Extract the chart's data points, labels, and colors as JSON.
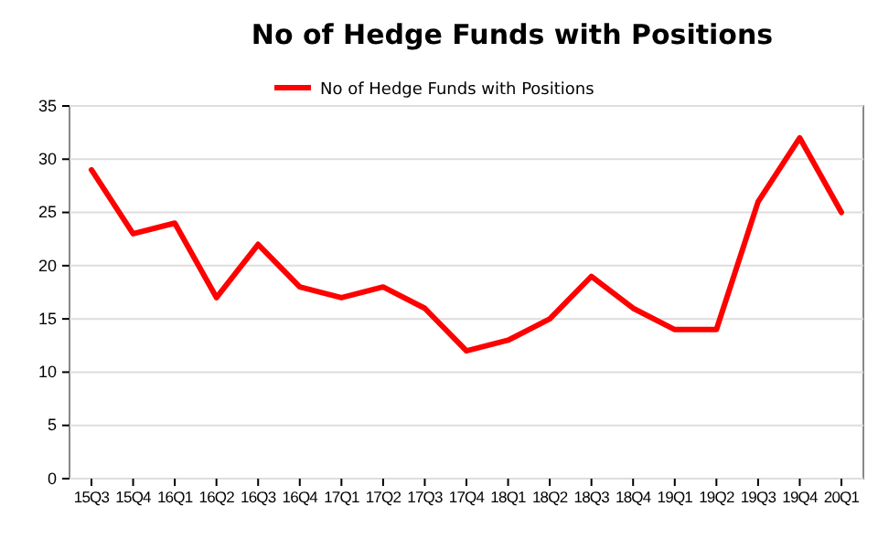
{
  "chart_data": {
    "type": "line",
    "title": "No of Hedge Funds with Positions",
    "categories": [
      "15Q3",
      "15Q4",
      "16Q1",
      "16Q2",
      "16Q3",
      "16Q4",
      "17Q1",
      "17Q2",
      "17Q3",
      "17Q4",
      "18Q1",
      "18Q2",
      "18Q3",
      "18Q4",
      "19Q1",
      "19Q2",
      "19Q3",
      "19Q4",
      "20Q1"
    ],
    "series": [
      {
        "name": "No of Hedge Funds with Positions",
        "color": "#ff0000",
        "values": [
          29,
          23,
          24,
          17,
          22,
          18,
          17,
          18,
          16,
          12,
          13,
          15,
          19,
          16,
          14,
          14,
          26,
          32,
          25
        ]
      }
    ],
    "ylim": [
      0,
      35
    ],
    "yticks": [
      0,
      5,
      10,
      15,
      20,
      25,
      30,
      35
    ],
    "grid": "y",
    "legend": "top",
    "marker": "none",
    "line_style": "solid"
  }
}
